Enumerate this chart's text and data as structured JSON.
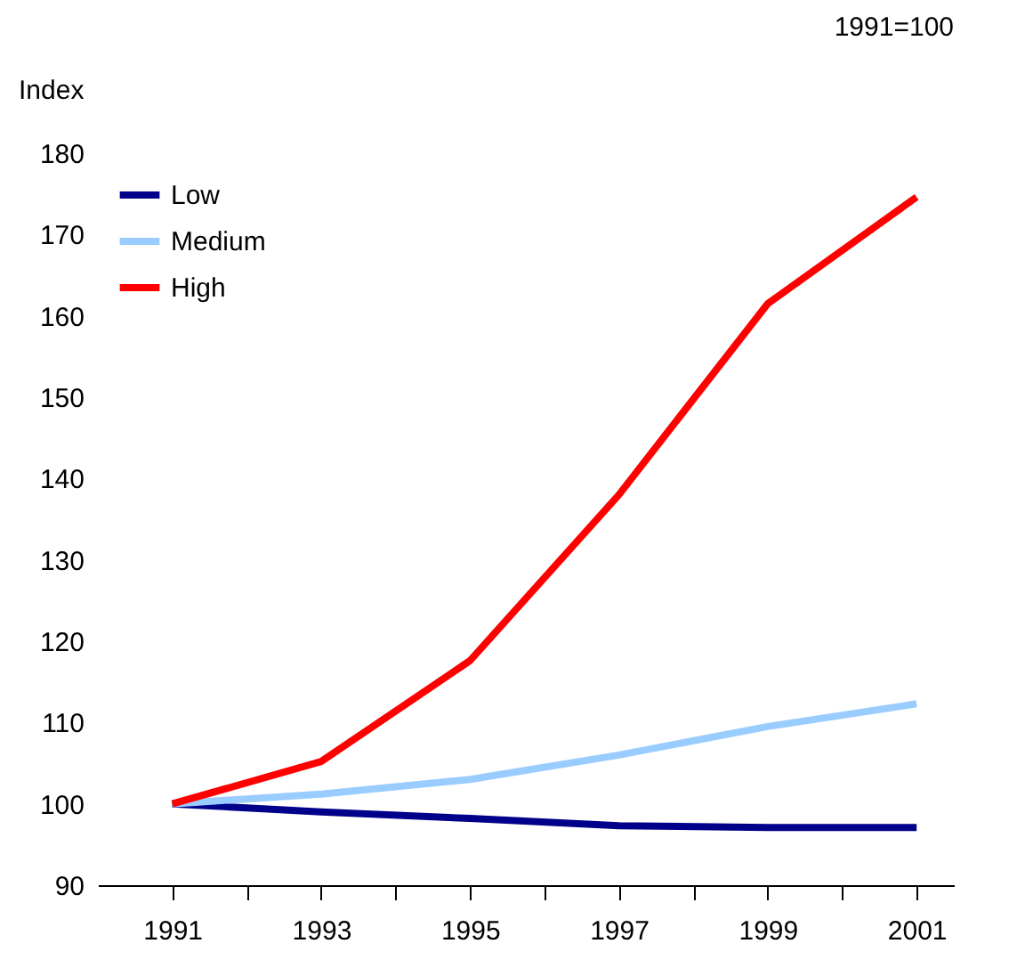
{
  "chart_data": {
    "type": "line",
    "ylabel": "Index",
    "annotations": [
      "1991=100"
    ],
    "x": [
      1991,
      1993,
      1995,
      1997,
      1999,
      2001
    ],
    "series": [
      {
        "name": "Low",
        "color": "#00008b",
        "values": [
          100,
          99,
          98.2,
          97.3,
          97.1,
          97.1
        ]
      },
      {
        "name": "Medium",
        "color": "#99ccff",
        "values": [
          100,
          101.2,
          103,
          106,
          109.5,
          112.3
        ]
      },
      {
        "name": "High",
        "color": "#ff0000",
        "values": [
          100,
          105.2,
          117.6,
          138,
          161.5,
          174.6
        ]
      }
    ],
    "xlim": [
      1990,
      2001.5
    ],
    "xticks": [
      1991,
      {
        "value": 1992,
        "label": null
      },
      1993,
      {
        "value": 1994,
        "label": null
      },
      1995,
      {
        "value": 1996,
        "label": null
      },
      1997,
      {
        "value": 1998,
        "label": null
      },
      1999,
      {
        "value": 2000,
        "label": null
      },
      2001
    ],
    "ylim": [
      90,
      180
    ],
    "yticks": [
      90,
      100,
      110,
      120,
      130,
      140,
      150,
      160,
      170,
      180
    ],
    "grid": false,
    "legend": "top left",
    "marker": "none",
    "line_style": "solid"
  }
}
